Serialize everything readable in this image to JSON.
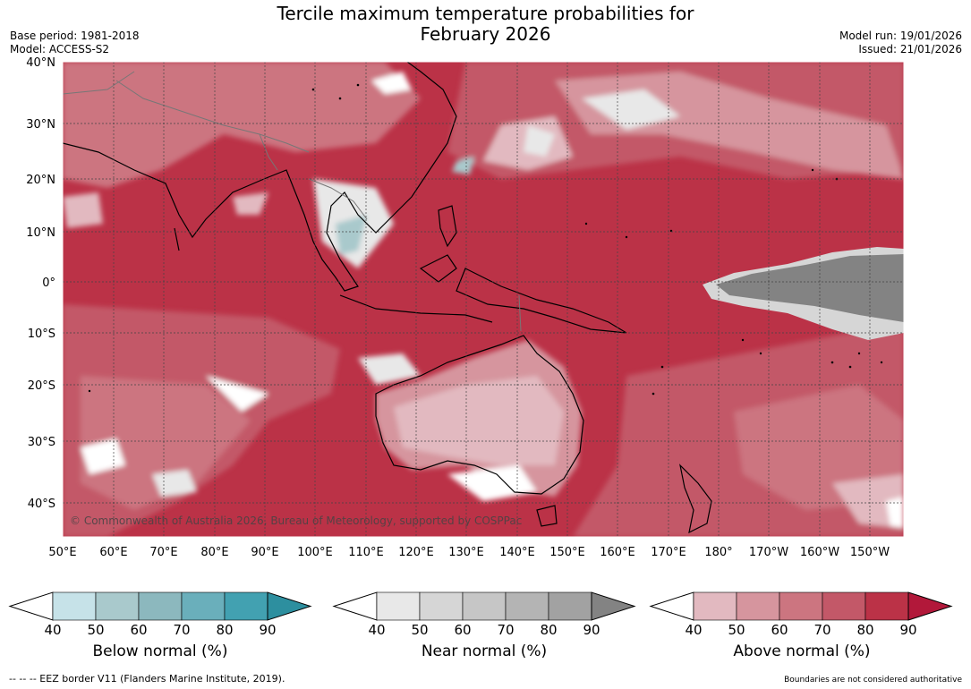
{
  "title_line1": "Tercile maximum temperature probabilities for",
  "title_line2": "February 2026",
  "base_period": "Base period: 1981-2018",
  "model": "Model: ACCESS-S2",
  "model_run": "Model run: 19/01/2026",
  "issued": "Issued: 21/01/2026",
  "lat_labels": [
    "40°N",
    "30°N",
    "20°N",
    "10°N",
    "0°",
    "10°S",
    "20°S",
    "30°S",
    "40°S"
  ],
  "lon_labels": [
    "50°E",
    "60°E",
    "70°E",
    "80°E",
    "90°E",
    "100°E",
    "110°E",
    "120°E",
    "130°E",
    "140°E",
    "150°E",
    "160°E",
    "170°E",
    "180°",
    "170°W",
    "160°W",
    "150°W"
  ],
  "copyright": "© Commonwealth of Australia 2026, Bureau of Meteorology, supported by COSPPac",
  "colorbars": [
    {
      "title": "Below normal (%)",
      "ticks": [
        "40",
        "50",
        "60",
        "70",
        "80",
        "90"
      ],
      "colors": [
        "#ffffff",
        "#c6e2e8",
        "#a9c9cc",
        "#8cb8be",
        "#6aafbb",
        "#42a1b1",
        "#2d8f9f"
      ]
    },
    {
      "title": "Near normal (%)",
      "ticks": [
        "40",
        "50",
        "60",
        "70",
        "80",
        "90"
      ],
      "colors": [
        "#ffffff",
        "#e8e8e8",
        "#d6d6d6",
        "#c6c6c6",
        "#b4b4b4",
        "#a2a2a2",
        "#838383"
      ]
    },
    {
      "title": "Above normal (%)",
      "ticks": [
        "40",
        "50",
        "60",
        "70",
        "80",
        "90"
      ],
      "colors": [
        "#ffffff",
        "#e2b9c0",
        "#d6959e",
        "#cc7580",
        "#c35868",
        "#bb3247",
        "#b2183a"
      ]
    }
  ],
  "eez_note": "--  --  -- EEZ border V11 (Flanders Marine Institute, 2019).",
  "boundary_note": "Boundaries are not considered authoritative"
}
